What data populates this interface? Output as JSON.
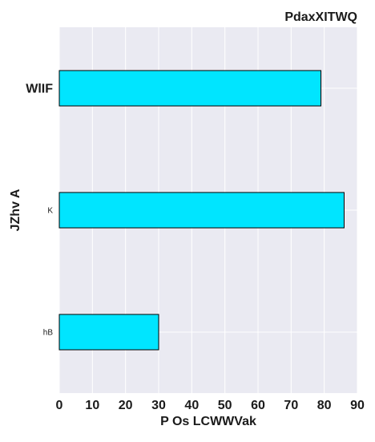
{
  "chart_data": {
    "type": "bar",
    "orientation": "horizontal",
    "title": "PdaxXITWQ",
    "xlabel": "P Os LCWWVak",
    "ylabel": "JZhv A",
    "categories": [
      "WlIF",
      "K",
      "hB"
    ],
    "values": [
      79,
      86,
      30
    ],
    "xlim": [
      0,
      90
    ],
    "xticks": [
      "0",
      "10",
      "20",
      "30",
      "40",
      "50",
      "60",
      "70",
      "80",
      "90"
    ],
    "grid": true,
    "legend": "none",
    "colors": {
      "bar": "#00e5ff",
      "bar_edge": "#000000",
      "plot_background": "#eaeaf2",
      "grid": "#ffffff",
      "text": "#1a1a1a"
    }
  }
}
